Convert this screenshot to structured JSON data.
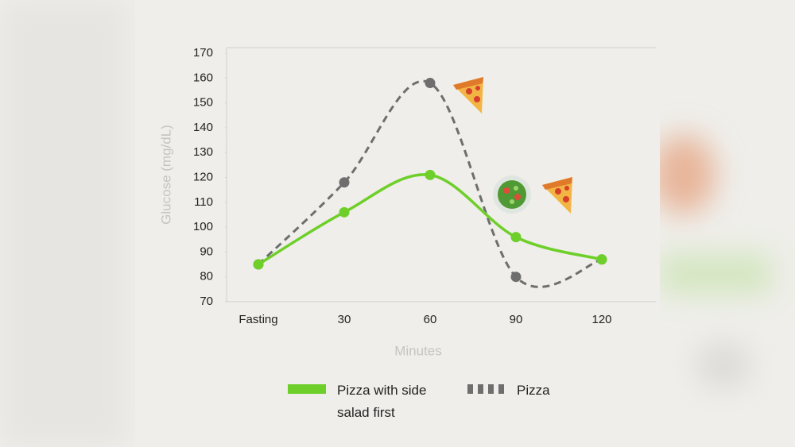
{
  "chart_data": {
    "type": "line",
    "categories": [
      "Fasting",
      "30",
      "60",
      "90",
      "120"
    ],
    "series": [
      {
        "name": "Pizza with side salad first",
        "color": "#6fcf2a",
        "dashed": false,
        "values": [
          85,
          106,
          121,
          96,
          87
        ]
      },
      {
        "name": "Pizza",
        "color": "#6e6e6e",
        "dashed": true,
        "values": [
          85,
          118,
          158,
          80,
          87
        ]
      }
    ],
    "ylabel": "Glucose (mg/dL)",
    "xlabel": "Minutes",
    "ylim": [
      70,
      170
    ],
    "yticks": [
      70,
      80,
      90,
      100,
      110,
      120,
      130,
      140,
      150,
      160,
      170
    ],
    "grid": false,
    "legend": "bottom"
  }
}
